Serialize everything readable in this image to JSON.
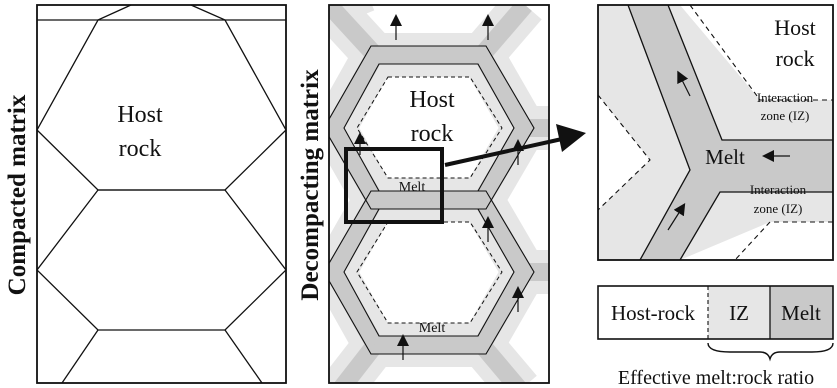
{
  "panel_left": {
    "side_label": "Compacted matrix",
    "cell_label_line1": "Host",
    "cell_label_line2": "rock"
  },
  "panel_middle": {
    "side_label": "Decompacting matrix",
    "cell_label_line1": "Host",
    "cell_label_line2": "rock",
    "melt_label_upper": "Melt",
    "melt_label_lower": "Melt"
  },
  "panel_zoom": {
    "host_line1": "Host",
    "host_line2": "rock",
    "iz_upper_line1": "Interaction",
    "iz_upper_line2": "zone (IZ)",
    "melt_label": "Melt",
    "iz_lower_line1": "Interaction",
    "iz_lower_line2": "zone (IZ)"
  },
  "legend": {
    "host_rock": "Host-rock",
    "iz": "IZ",
    "melt": "Melt",
    "caption": "Effective melt:rock ratio"
  },
  "colors": {
    "melt": "#c9c9c9",
    "interaction_zone": "#e6e6e6",
    "host_rock": "#ffffff",
    "line": "#111111"
  }
}
